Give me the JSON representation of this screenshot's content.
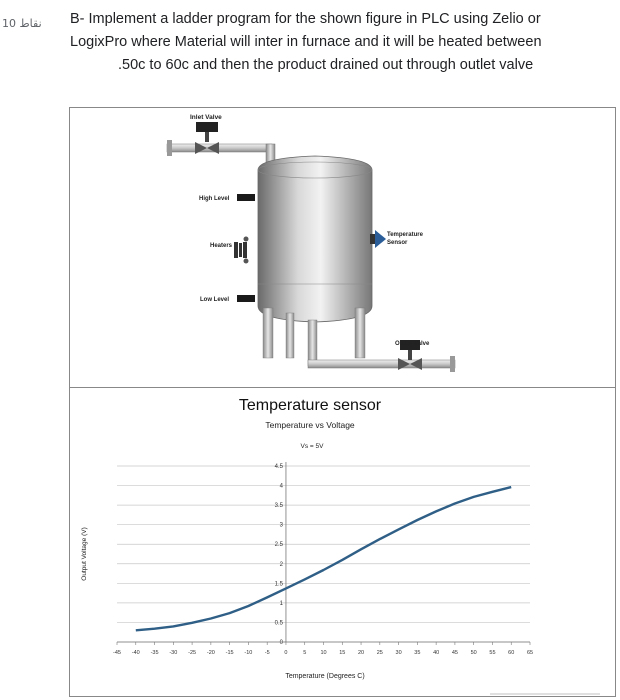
{
  "question": {
    "points": "10 نقاط",
    "line1": "B- Implement a ladder program for the shown figure in PLC using Zelio or",
    "line2": "LogixPro where Material will inter in furnace and it will be heated between",
    "line3": ".50c to 60c and then the product drained out through outlet valve"
  },
  "tank_diagram": {
    "inlet_valve": "Inlet Valve",
    "high_level": "High Level",
    "heaters": "Heaters",
    "low_level": "Low Level",
    "temperature_sensor_l1": "Temperature",
    "temperature_sensor_l2": "Sensor",
    "outlet_valve": "Outlet Valve"
  },
  "chart_data": {
    "type": "line",
    "title": "Temperature sensor",
    "subtitle": "Temperature vs Voltage",
    "annotation": "Vs = 5V",
    "xlabel": "Temperature (Degrees C)",
    "ylabel": "Output Voltage (V)",
    "xlim": [
      -45,
      65
    ],
    "ylim": [
      0,
      4.5
    ],
    "x_ticks": [
      "-45",
      "-40",
      "-35",
      "-30",
      "-25",
      "-20",
      "-15",
      "-10",
      "-5",
      "0",
      "5",
      "10",
      "15",
      "20",
      "25",
      "30",
      "35",
      "40",
      "45",
      "50",
      "55",
      "60",
      "65"
    ],
    "y_ticks": [
      "0",
      "0.5",
      "1",
      "1.5",
      "2",
      "2.5",
      "3",
      "3.5",
      "4",
      "4.5"
    ],
    "grid": true,
    "series_color": "#2f5f86",
    "series": [
      {
        "x": [
          -40,
          -35,
          -30,
          -25,
          -20,
          -15,
          -10,
          -5,
          0,
          5,
          10,
          15,
          20,
          25,
          30,
          35,
          40,
          45,
          50,
          55,
          60
        ],
        "y": [
          0.3,
          0.34,
          0.4,
          0.49,
          0.6,
          0.74,
          0.92,
          1.14,
          1.37,
          1.6,
          1.84,
          2.1,
          2.37,
          2.63,
          2.88,
          3.12,
          3.34,
          3.54,
          3.71,
          3.84,
          3.96
        ]
      }
    ]
  }
}
